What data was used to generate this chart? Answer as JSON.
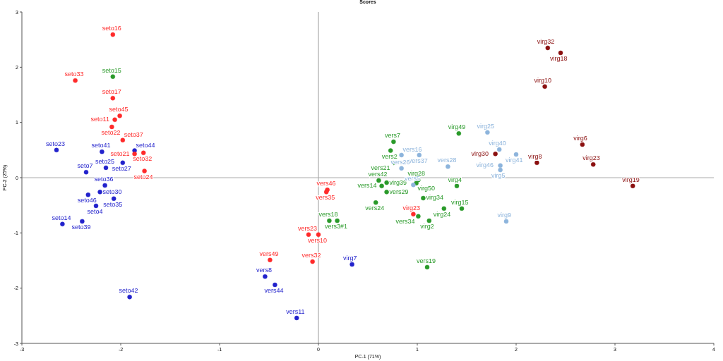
{
  "chart_data": {
    "type": "scatter",
    "title": "Scores",
    "xlabel": "PC-1 (71%)",
    "ylabel": "PC-2 (25%)",
    "xlim": [
      -3,
      4
    ],
    "ylim": [
      -3,
      3
    ],
    "xticks": [
      -3,
      -2,
      -1,
      0,
      1,
      2,
      3,
      4
    ],
    "yticks": [
      -3,
      -2,
      -1,
      0,
      1,
      2,
      3
    ],
    "grid": false,
    "marker": "circle",
    "ref_lines": [
      {
        "axis": "x",
        "value": 0,
        "color": "#999999"
      },
      {
        "axis": "y",
        "value": 0,
        "color": "#aaaaaa"
      }
    ],
    "series": [
      {
        "color": "#2222cc",
        "x": [
          -2.65,
          -2.19,
          -1.98,
          -2.15,
          -2.35,
          -2.16,
          -2.21,
          -2.33,
          -2.07,
          -2.25,
          -2.59,
          -2.39,
          -1.91,
          -1.86,
          0.34,
          -0.54,
          -0.44,
          -0.22
        ],
        "values": [
          0.5,
          0.47,
          0.27,
          0.18,
          0.1,
          -0.14,
          -0.26,
          -0.31,
          -0.38,
          -0.51,
          -0.84,
          -0.79,
          -2.16,
          0.49,
          -1.57,
          -1.79,
          -1.94,
          -2.54
        ],
        "value_labels": [
          "seto23",
          "seto41",
          "seto27",
          "seto25",
          "seto7",
          "seto36",
          "seto30",
          "seto46",
          "seto35",
          "seto4",
          "seto14",
          "seto39",
          "seto42",
          "seto44",
          "virg7",
          "vers8",
          "vers44",
          "vers11"
        ]
      },
      {
        "color": "#ff2a2a",
        "x": [
          -2.08,
          -2.46,
          -2.08,
          -2.01,
          -2.06,
          -2.09,
          -1.98,
          -1.86,
          -1.77,
          -1.76,
          0.09,
          0.08,
          -0.1,
          0.0,
          -0.49,
          -0.06,
          0.96
        ],
        "values": [
          2.59,
          1.76,
          1.44,
          1.12,
          1.05,
          0.92,
          0.68,
          0.43,
          0.45,
          0.12,
          -0.22,
          -0.26,
          -1.03,
          -1.03,
          -1.49,
          -1.52,
          -0.66
        ],
        "value_labels": [
          "seto16",
          "seto33",
          "seto17",
          "seto45",
          "seto11",
          "seto22",
          "seto37",
          "seto21",
          "seto32",
          "seto24",
          "vers46",
          "vers35",
          "vers23",
          "vers10",
          "vers49",
          "vers32",
          "virg23"
        ]
      },
      {
        "color": "#2a9a2a",
        "x": [
          -2.08,
          0.11,
          0.19,
          0.58,
          1.1,
          0.76,
          0.73,
          0.76,
          0.61,
          0.69,
          0.64,
          0.69,
          1.01,
          0.99,
          1.06,
          1.4,
          1.42,
          1.27,
          1.45,
          1.12,
          1.01
        ],
        "values": [
          1.83,
          -0.78,
          -0.78,
          -0.45,
          -1.62,
          0.65,
          0.49,
          0.27,
          -0.05,
          -0.09,
          -0.15,
          -0.26,
          -0.04,
          -0.1,
          -0.37,
          -0.15,
          0.8,
          -0.56,
          -0.56,
          -0.78,
          -0.7
        ],
        "value_labels": [
          "seto15",
          "vers18",
          "vers3#1",
          "vers24",
          "vers19",
          "vers7",
          "vers2",
          "vers21",
          "vers42",
          "virg39",
          "vers14",
          "vers29",
          "virg28",
          "virg50",
          "virg34",
          "virg4",
          "virg49",
          "virg24",
          "virg15",
          "virg2",
          "vers34"
        ]
      },
      {
        "color": "#8db4dc",
        "x": [
          0.84,
          1.02,
          0.84,
          1.31,
          0.96,
          1.71,
          1.83,
          2.0,
          1.84,
          1.84,
          1.9
        ],
        "values": [
          0.41,
          0.41,
          0.17,
          0.2,
          -0.13,
          0.82,
          0.51,
          0.42,
          0.22,
          0.14,
          -0.79
        ],
        "value_labels": [
          "vers16",
          "vers37",
          "vers26",
          "vers28",
          "vers5",
          "virg25",
          "virg40",
          "virg41",
          "virg46",
          "virg5",
          "virg9"
        ]
      },
      {
        "color": "#8b1010",
        "x": [
          2.32,
          2.45,
          2.29,
          1.79,
          2.21,
          2.67,
          2.78,
          3.18
        ],
        "values": [
          2.35,
          2.26,
          1.65,
          0.43,
          0.27,
          0.6,
          0.24,
          -0.15
        ],
        "value_labels": [
          "virg32",
          "virg18",
          "virg10",
          "virg30",
          "virg8",
          "virg6",
          "virg23",
          "virg19"
        ]
      }
    ]
  }
}
